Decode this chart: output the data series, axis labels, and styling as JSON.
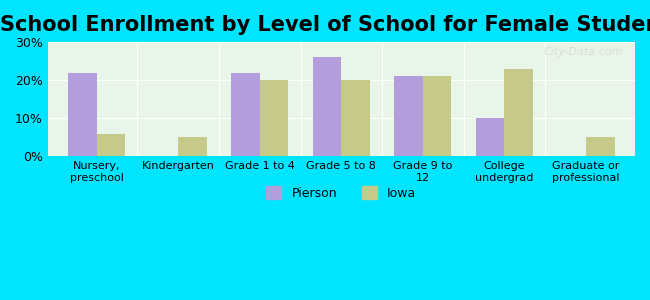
{
  "title": "School Enrollment by Level of School for Female Students",
  "categories": [
    "Nursery,\npreschool",
    "Kindergarten",
    "Grade 1 to 4",
    "Grade 5 to 8",
    "Grade 9 to\n12",
    "College\nundergrad",
    "Graduate or\nprofessional"
  ],
  "pierson": [
    22,
    0,
    22,
    26,
    21,
    10,
    0
  ],
  "iowa": [
    6,
    5,
    20,
    20,
    21,
    23,
    5
  ],
  "pierson_color": "#b39ddb",
  "iowa_color": "#c5c98a",
  "background_plot": "#e8f5e8",
  "background_fig": "#00e5ff",
  "ylim": [
    0,
    30
  ],
  "yticks": [
    0,
    10,
    20,
    30
  ],
  "ytick_labels": [
    "0%",
    "10%",
    "20%",
    "30%"
  ],
  "legend_labels": [
    "Pierson",
    "Iowa"
  ],
  "title_fontsize": 15,
  "bar_width": 0.35,
  "watermark": "City-Data.com"
}
